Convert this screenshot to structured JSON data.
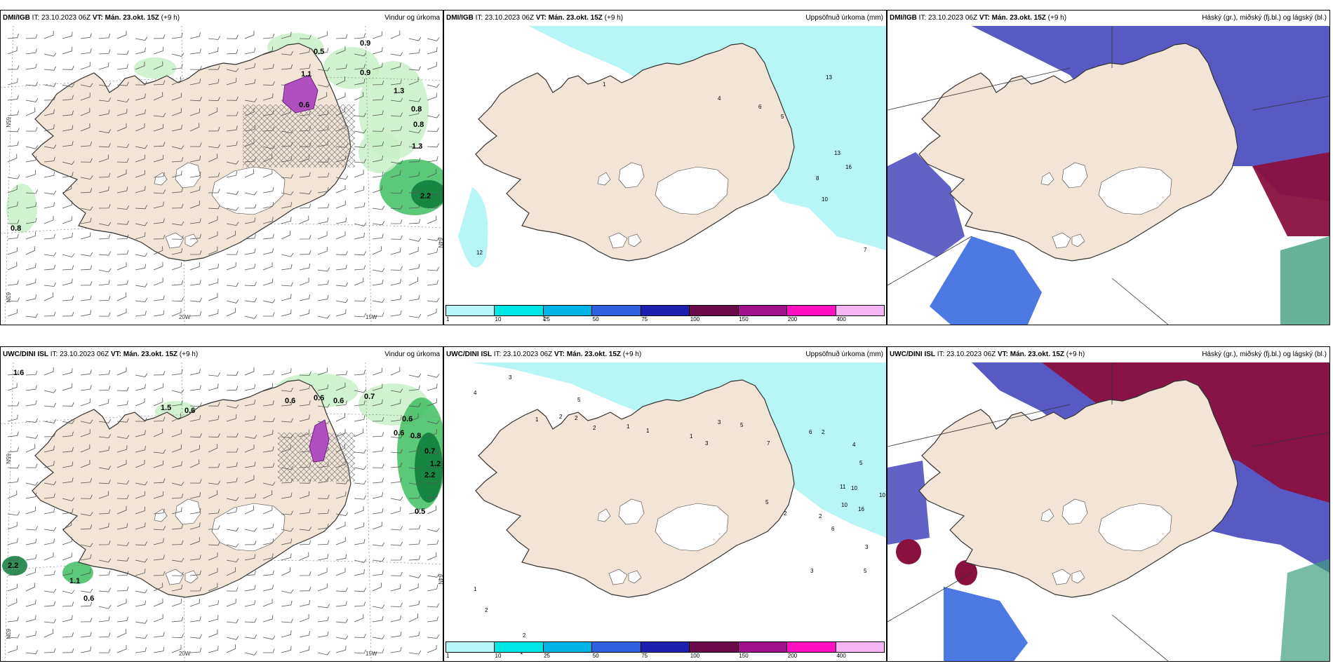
{
  "panels": [
    {
      "id": "p1",
      "source": "DMI/IGB",
      "it": "IT: 23.10.2023 06Z",
      "vt_label": "VT:",
      "vt": "Mán. 23.okt. 15Z",
      "lead": "(+9 h)",
      "title": "Vindur og úrkoma",
      "type": "wind",
      "precip_labels": [
        "0.5",
        "0.9",
        "1.1",
        "0.9",
        "0.6",
        "1.3",
        "0.8",
        "0.8",
        "1.3",
        "2.2",
        "0.8"
      ],
      "axis_labels": [
        "20W",
        "15W",
        "65N",
        "64N",
        "63N"
      ],
      "show_colorbar": false
    },
    {
      "id": "p2",
      "source": "DMI/IGB",
      "it": "IT: 23.10.2023 06Z",
      "vt_label": "VT:",
      "vt": "Mán. 23.okt. 15Z",
      "lead": "(+9 h)",
      "title": "Uppsöfnuð úrkoma (mm)",
      "type": "accum",
      "precip_labels": [
        "1",
        "4",
        "6",
        "5",
        "13",
        "13",
        "8",
        "16",
        "10",
        "7",
        "12",
        "1"
      ],
      "show_colorbar": true
    },
    {
      "id": "p3",
      "source": "DMI/IGB",
      "it": "IT: 23.10.2023 06Z",
      "vt_label": "VT:",
      "vt": "Mán. 23.okt. 15Z",
      "lead": "(+9 h)",
      "title": "Háský (gr.), miðský (fj.bl.) og lágský (bl.)",
      "type": "cloud",
      "show_colorbar": false
    },
    {
      "id": "p4",
      "source": "UWC/DINI ISL",
      "it": "IT: 23.10.2023 06Z",
      "vt_label": "VT:",
      "vt": "Mán. 23.okt. 15Z",
      "lead": "(+9 h)",
      "title": "Vindur og úrkoma",
      "type": "wind",
      "precip_labels": [
        "1.6",
        "1.5",
        "0.6",
        "0.6",
        "0.6",
        "0.6",
        "0.7",
        "0.6",
        "0.6",
        "0.8",
        "0.7",
        "1.2",
        "2.2",
        "0.5",
        "2.2",
        "1.1",
        "0.6"
      ],
      "axis_labels": [
        "20W",
        "15W",
        "65N",
        "64N",
        "63N"
      ],
      "show_colorbar": false
    },
    {
      "id": "p5",
      "source": "UWC/DINI ISL",
      "it": "IT: 23.10.2023 06Z",
      "vt_label": "VT:",
      "vt": "Mán. 23.okt. 15Z",
      "lead": "(+9 h)",
      "title": "Uppsöfnuð úrkoma (mm)",
      "type": "accum",
      "precip_labels": [
        "4",
        "3",
        "5",
        "1",
        "2",
        "2",
        "2",
        "1",
        "1",
        "1",
        "3",
        "3",
        "5",
        "7",
        "6",
        "2",
        "4",
        "5",
        "11",
        "10",
        "10",
        "16",
        "10",
        "5",
        "2",
        "2",
        "6",
        "3",
        "3",
        "1",
        "2",
        "2",
        "1",
        "5"
      ],
      "show_colorbar": true
    },
    {
      "id": "p6",
      "source": "UWC/DINI ISL",
      "it": "IT: 23.10.2023 06Z",
      "vt_label": "VT:",
      "vt": "Mán. 23.okt. 15Z",
      "lead": "(+9 h)",
      "title": "Háský (gr.), miðský (fj.bl.) og lágský (bl.)",
      "type": "cloud",
      "show_colorbar": false
    }
  ],
  "colorbar": {
    "colors": [
      "#b8f7f7",
      "#00e6e6",
      "#00b4e6",
      "#3060e0",
      "#2020b0",
      "#6a0a4a",
      "#a0108a",
      "#ff10c0",
      "#f4b4f4"
    ],
    "labels": [
      "1",
      "10",
      "25",
      "50",
      "75",
      "100",
      "150",
      "200",
      "400"
    ]
  },
  "colors": {
    "land": "#f2e4d6",
    "glacier": "#ffffff",
    "precip_light": "#c8f0c8",
    "precip_mid": "#40c060",
    "precip_dark": "#0a7a3a",
    "accum_sea": "#b4f4f4",
    "high_cloud": "#8a1040",
    "mid_cloud": "#5050c0",
    "low_cloud": "#3a6ae0"
  }
}
